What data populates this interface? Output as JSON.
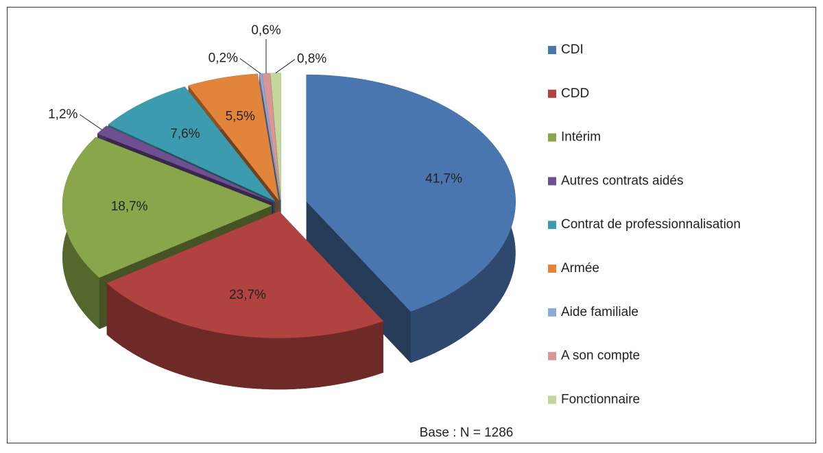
{
  "chart_data": {
    "type": "pie",
    "categories": [
      "CDI",
      "CDD",
      "Intérim",
      "Autres contrats aidés",
      "Contrat de professionnalisation",
      "Armée",
      "Aide familiale",
      "A son compte",
      "Fonctionnaire"
    ],
    "values": [
      41.7,
      23.7,
      18.7,
      1.2,
      7.6,
      5.5,
      0.2,
      0.6,
      0.8
    ],
    "value_labels": [
      "41,7%",
      "23,7%",
      "18,7%",
      "1,2%",
      "7,6%",
      "5,5%",
      "0,2%",
      "0,6%",
      "0,8%"
    ],
    "colors": [
      "#4a76b0",
      "#b0433f",
      "#8aa64a",
      "#6e4f92",
      "#3d9bb0",
      "#e2843a",
      "#8ea8d8",
      "#d99694",
      "#c3d69b"
    ],
    "annotation": "Base : N = 1286",
    "legend": "right"
  }
}
